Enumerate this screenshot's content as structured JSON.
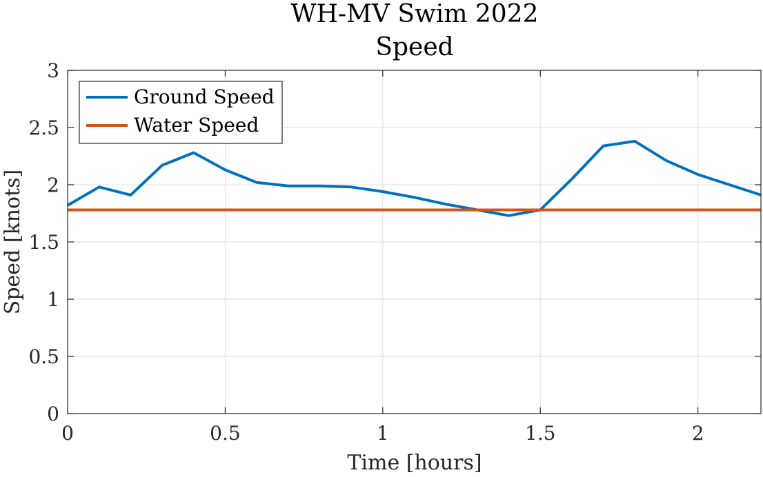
{
  "chart_data": {
    "type": "line",
    "title": "WH-MV Swim 2022",
    "subtitle": "Speed",
    "xlabel": "Time [hours]",
    "ylabel": "Speed [knots]",
    "xlim": [
      0,
      2.2
    ],
    "ylim": [
      0,
      3
    ],
    "xticks": [
      0,
      0.5,
      1,
      1.5,
      2
    ],
    "xtick_labels": [
      "0",
      "0.5",
      "1",
      "1.5",
      "2"
    ],
    "yticks": [
      0,
      0.5,
      1,
      1.5,
      2,
      2.5,
      3
    ],
    "ytick_labels": [
      "0",
      "0.5",
      "1",
      "1.5",
      "2",
      "2.5",
      "3"
    ],
    "grid": true,
    "legend_position": "top-left",
    "series": [
      {
        "name": "Ground Speed",
        "color": "#0072bd",
        "x": [
          0,
          0.1,
          0.2,
          0.3,
          0.4,
          0.5,
          0.6,
          0.7,
          0.8,
          0.9,
          1.0,
          1.1,
          1.2,
          1.3,
          1.4,
          1.5,
          1.6,
          1.7,
          1.8,
          1.9,
          2.0,
          2.1,
          2.2
        ],
        "y": [
          1.82,
          1.98,
          1.91,
          2.17,
          2.28,
          2.13,
          2.02,
          1.99,
          1.99,
          1.98,
          1.94,
          1.89,
          1.83,
          1.78,
          1.73,
          1.78,
          2.05,
          2.34,
          2.38,
          2.21,
          2.09,
          2.0,
          1.91
        ]
      },
      {
        "name": "Water Speed",
        "color": "#d95319",
        "x": [
          0,
          2.2
        ],
        "y": [
          1.78,
          1.78
        ]
      }
    ]
  }
}
